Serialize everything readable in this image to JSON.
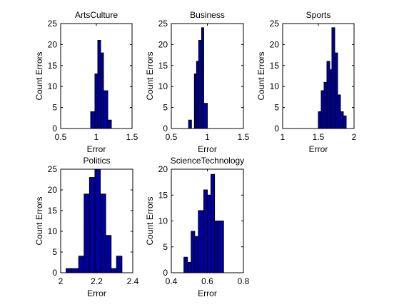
{
  "chart_data": [
    {
      "type": "bar",
      "title": "ArtsCulture",
      "xlabel": "Error",
      "ylabel": "Count Errors",
      "xlim": [
        0.5,
        1.5
      ],
      "ylim": [
        0,
        25
      ],
      "xticks": [
        "0.5",
        "1",
        "1.5"
      ],
      "yticks": [
        "0",
        "5",
        "10",
        "15",
        "20",
        "25"
      ],
      "bins": [
        {
          "x0": 0.92,
          "x1": 0.98,
          "count": 4
        },
        {
          "x0": 0.98,
          "x1": 1.02,
          "count": 13
        },
        {
          "x0": 1.02,
          "x1": 1.06,
          "count": 21
        },
        {
          "x0": 1.06,
          "x1": 1.1,
          "count": 18
        },
        {
          "x0": 1.1,
          "x1": 1.16,
          "count": 9
        },
        {
          "x0": 1.16,
          "x1": 1.21,
          "count": 2
        }
      ],
      "fill": "#0000A0"
    },
    {
      "type": "bar",
      "title": "Business",
      "xlabel": "Error",
      "ylabel": "Count Errors",
      "xlim": [
        0.5,
        1.5
      ],
      "ylim": [
        0,
        25
      ],
      "xticks": [
        "0.5",
        "1",
        "1.5"
      ],
      "yticks": [
        "0",
        "5",
        "10",
        "15",
        "20",
        "25"
      ],
      "bins": [
        {
          "x0": 0.74,
          "x1": 0.78,
          "count": 2
        },
        {
          "x0": 0.78,
          "x1": 0.82,
          "count": 0
        },
        {
          "x0": 0.82,
          "x1": 0.85,
          "count": 13
        },
        {
          "x0": 0.85,
          "x1": 0.88,
          "count": 16
        },
        {
          "x0": 0.88,
          "x1": 0.92,
          "count": 21
        },
        {
          "x0": 0.92,
          "x1": 0.95,
          "count": 24
        },
        {
          "x0": 0.95,
          "x1": 1.0,
          "count": 6
        }
      ],
      "fill": "#0000A0"
    },
    {
      "type": "bar",
      "title": "Sports",
      "xlabel": "Error",
      "ylabel": "Count Errors",
      "xlim": [
        1,
        2
      ],
      "ylim": [
        0,
        25
      ],
      "xticks": [
        "1",
        "1.5",
        "2"
      ],
      "yticks": [
        "0",
        "5",
        "10",
        "15",
        "20",
        "25"
      ],
      "bins": [
        {
          "x0": 1.5,
          "x1": 1.54,
          "count": 4
        },
        {
          "x0": 1.54,
          "x1": 1.58,
          "count": 9
        },
        {
          "x0": 1.58,
          "x1": 1.62,
          "count": 11
        },
        {
          "x0": 1.62,
          "x1": 1.66,
          "count": 16
        },
        {
          "x0": 1.66,
          "x1": 1.69,
          "count": 14
        },
        {
          "x0": 1.69,
          "x1": 1.73,
          "count": 24
        },
        {
          "x0": 1.73,
          "x1": 1.77,
          "count": 18
        },
        {
          "x0": 1.77,
          "x1": 1.81,
          "count": 8
        },
        {
          "x0": 1.81,
          "x1": 1.85,
          "count": 4
        },
        {
          "x0": 1.85,
          "x1": 1.89,
          "count": 3
        }
      ],
      "fill": "#0000A0"
    },
    {
      "type": "bar",
      "title": "Politics",
      "xlabel": "Error",
      "ylabel": "Count Errors",
      "xlim": [
        2,
        2.4
      ],
      "ylim": [
        0,
        25
      ],
      "xticks": [
        "2",
        "2.2",
        "2.4"
      ],
      "yticks": [
        "0",
        "5",
        "10",
        "15",
        "20",
        "25"
      ],
      "bins": [
        {
          "x0": 2.03,
          "x1": 2.06,
          "count": 1
        },
        {
          "x0": 2.06,
          "x1": 2.1,
          "count": 1
        },
        {
          "x0": 2.1,
          "x1": 2.13,
          "count": 4
        },
        {
          "x0": 2.13,
          "x1": 2.16,
          "count": 19
        },
        {
          "x0": 2.16,
          "x1": 2.19,
          "count": 23
        },
        {
          "x0": 2.19,
          "x1": 2.22,
          "count": 25
        },
        {
          "x0": 2.22,
          "x1": 2.25,
          "count": 19
        },
        {
          "x0": 2.25,
          "x1": 2.28,
          "count": 9
        },
        {
          "x0": 2.28,
          "x1": 2.31,
          "count": 1
        },
        {
          "x0": 2.31,
          "x1": 2.34,
          "count": 4
        }
      ],
      "fill": "#0000A0"
    },
    {
      "type": "bar",
      "title": "ScienceTechnology",
      "xlabel": "Error",
      "ylabel": "Count Errors",
      "xlim": [
        0.4,
        0.8
      ],
      "ylim": [
        0,
        20
      ],
      "xticks": [
        "0.4",
        "0.6",
        "0.8"
      ],
      "yticks": [
        "0",
        "5",
        "10",
        "15",
        "20"
      ],
      "bins": [
        {
          "x0": 0.47,
          "x1": 0.49,
          "count": 3
        },
        {
          "x0": 0.49,
          "x1": 0.51,
          "count": 2
        },
        {
          "x0": 0.51,
          "x1": 0.53,
          "count": 8
        },
        {
          "x0": 0.53,
          "x1": 0.55,
          "count": 7
        },
        {
          "x0": 0.55,
          "x1": 0.58,
          "count": 12
        },
        {
          "x0": 0.58,
          "x1": 0.6,
          "count": 16
        },
        {
          "x0": 0.6,
          "x1": 0.62,
          "count": 15
        },
        {
          "x0": 0.62,
          "x1": 0.64,
          "count": 19
        },
        {
          "x0": 0.64,
          "x1": 0.66,
          "count": 10
        },
        {
          "x0": 0.66,
          "x1": 0.69,
          "count": 10
        }
      ],
      "fill": "#0000A0"
    }
  ]
}
